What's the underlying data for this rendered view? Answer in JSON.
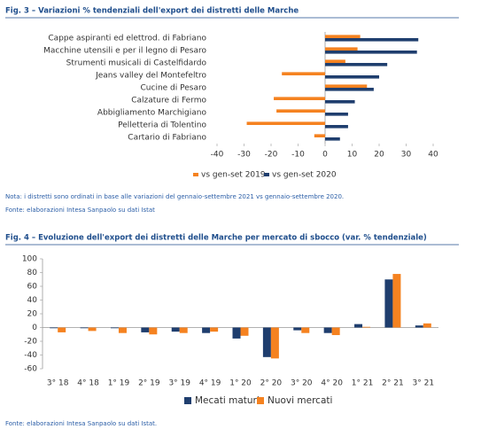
{
  "chart_data": [
    {
      "type": "hbar",
      "title": "Fig. 3 – Variazioni % tendenziali dell'export dei distretti delle Marche",
      "categories": [
        "Cappe aspiranti ed elettrod. di Fabriano",
        "Macchine utensili e per il legno di Pesaro",
        "Strumenti musicali di Castelfidardo",
        "Jeans valley del Montefeltro",
        "Cucine di Pesaro",
        "Calzature di Fermo",
        "Abbigliamento Marchigiano",
        "Pelletteria di Tolentino",
        "Cartario di Fabriano"
      ],
      "series": [
        {
          "name": "vs gen-set 2019",
          "color": "#f58220",
          "values": [
            13,
            12,
            7.5,
            -16,
            15.5,
            -19,
            -18,
            -29,
            -4
          ]
        },
        {
          "name": "vs gen-set 2020",
          "color": "#1f3e6e",
          "values": [
            34.5,
            34,
            23,
            20,
            18,
            11,
            8.5,
            8.5,
            5.5
          ]
        }
      ],
      "xlim": [
        -40,
        40
      ],
      "xticks": [
        -40,
        -30,
        -20,
        -10,
        0,
        10,
        20,
        30,
        40
      ],
      "legend": "bottom",
      "note": "Nota: i distretti sono ordinati in base alle variazioni del gennaio-settembre 2021 vs gennaio-settembre 2020.",
      "source": "Fonte: elaborazioni Intesa Sanpaolo su dati Istat"
    },
    {
      "type": "bar",
      "title": "Fig. 4 – Evoluzione dell'export dei distretti delle Marche per mercato di sbocco (var. % tendenziale)",
      "categories": [
        "3° 18",
        "4° 18",
        "1° 19",
        "2° 19",
        "3° 19",
        "4° 19",
        "1° 20",
        "2° 20",
        "3° 20",
        "4° 20",
        "1° 21",
        "2° 21",
        "3° 21"
      ],
      "series": [
        {
          "name": "Mecati maturi",
          "color": "#1f3e6e",
          "values": [
            -1,
            -1,
            -1,
            -7,
            -6,
            -8,
            -16,
            -43,
            -4,
            -8,
            5,
            70,
            3
          ]
        },
        {
          "name": "Nuovi mercati",
          "color": "#f58220",
          "values": [
            -7,
            -5,
            -8,
            -10,
            -8,
            -6,
            -12,
            -45,
            -8,
            -11,
            1,
            78,
            6
          ]
        }
      ],
      "ylim": [
        -60,
        100
      ],
      "yticks": [
        -60,
        -40,
        -20,
        0,
        20,
        40,
        60,
        80,
        100
      ],
      "legend": "bottom",
      "source": "Fonte: elaborazioni Intesa Sanpaolo su dati Istat."
    }
  ]
}
